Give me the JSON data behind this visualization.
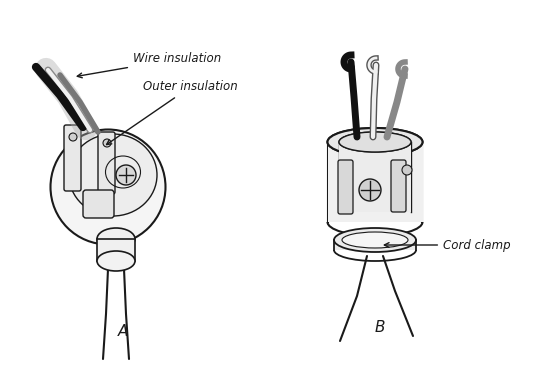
{
  "background_color": "#ffffff",
  "label_A": "A",
  "label_B": "B",
  "label_wire_insulation": "Wire insulation",
  "label_outer_insulation": "Outer insulation",
  "label_cord_clamp": "Cord clamp",
  "line_color": "#1a1a1a",
  "font_size_label": 8.5,
  "font_size_letter": 11,
  "figsize": [
    5.35,
    3.82
  ],
  "dpi": 100
}
